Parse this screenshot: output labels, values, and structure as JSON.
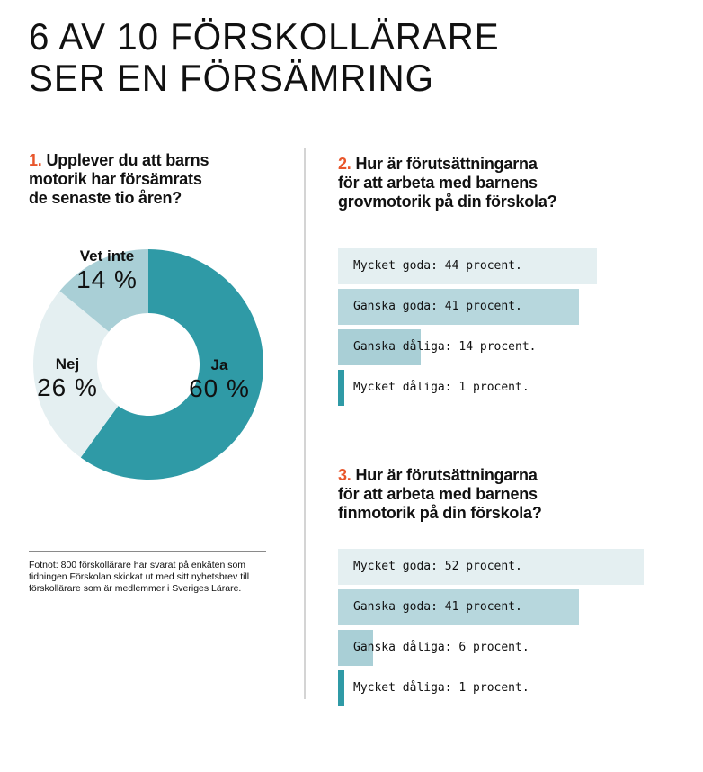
{
  "title": {
    "line1": "6 AV 10 FÖRSKOLLÄRARE",
    "line2": "SER EN FÖRSÄMRING"
  },
  "colors": {
    "accent_number": "#e8562b",
    "ja": "#2f9aa6",
    "nej": "#e4eff1",
    "vet_inte": "#a9cfd6",
    "bar_level_1": "#e4eff1",
    "bar_level_2": "#b7d7dd",
    "bar_level_3": "#a9cfd6",
    "bar_level_4": "#2f9aa6"
  },
  "questions": {
    "q1": {
      "num": "1.",
      "line1": "Upplever du att barns",
      "line2": "motorik har försämrats",
      "line3": "de senaste tio åren?"
    },
    "q2": {
      "num": "2.",
      "line1": "Hur är förutsättningarna",
      "line2": "för att arbeta med barnens",
      "line3": "grovmotorik på din förskola?"
    },
    "q3": {
      "num": "3.",
      "line1": "Hur är förutsättningarna",
      "line2": "för att arbeta med barnens",
      "line3": "finmotorik på din förskola?"
    }
  },
  "footnote": "Fotnot: 800 förskollärare har svarat på enkäten som tidningen Förskolan skickat ut med sitt nyhetsbrev till förskollärare som är medlemmer i Sveriges Lärare.",
  "chart_data": [
    {
      "type": "pie",
      "donut": true,
      "slices": [
        {
          "label": "Ja",
          "value": 60,
          "value_label": "60 %",
          "color": "#2f9aa6"
        },
        {
          "label": "Nej",
          "value": 26,
          "value_label": "26 %",
          "color": "#e4eff1"
        },
        {
          "label": "Vet inte",
          "value": 14,
          "value_label": "14 %",
          "color": "#a9cfd6"
        }
      ]
    },
    {
      "type": "bar",
      "orientation": "horizontal",
      "categories": [
        "Mycket goda",
        "Ganska goda",
        "Ganska dåliga",
        "Mycket dåliga"
      ],
      "values": [
        44,
        41,
        14,
        1
      ],
      "labels": [
        "Mycket goda: 44 procent.",
        "Ganska goda: 41 procent.",
        "Ganska dåliga: 14 procent.",
        "Mycket dåliga: 1 procent."
      ],
      "colors": [
        "#e4eff1",
        "#b7d7dd",
        "#a9cfd6",
        "#2f9aa6"
      ]
    },
    {
      "type": "bar",
      "orientation": "horizontal",
      "categories": [
        "Mycket goda",
        "Ganska goda",
        "Ganska dåliga",
        "Mycket dåliga"
      ],
      "values": [
        52,
        41,
        6,
        1
      ],
      "labels": [
        "Mycket goda: 52 procent.",
        "Ganska goda: 41 procent.",
        "Ganska dåliga: 6 procent.",
        "Mycket dåliga: 1 procent."
      ],
      "colors": [
        "#e4eff1",
        "#b7d7dd",
        "#a9cfd6",
        "#2f9aa6"
      ]
    }
  ]
}
